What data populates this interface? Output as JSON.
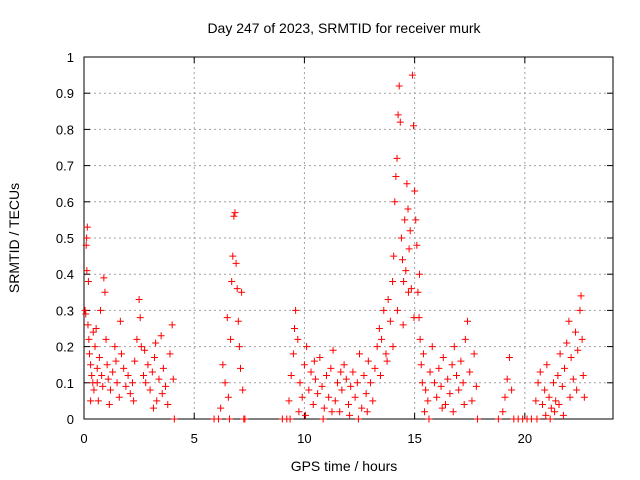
{
  "chart_data": {
    "type": "scatter",
    "title": "Day 247 of 2023, SRMTID for receiver murk",
    "xlabel": "GPS time / hours",
    "ylabel": "SRMTID / TECUs",
    "xlim": [
      0,
      24
    ],
    "ylim": [
      0,
      1
    ],
    "xticks": [
      0,
      5,
      10,
      15,
      20
    ],
    "xtick_labels": [
      "0",
      "5",
      "10",
      "15",
      "20"
    ],
    "yticks": [
      0,
      0.1,
      0.2,
      0.3,
      0.4,
      0.5,
      0.6,
      0.7,
      0.8,
      0.9,
      1
    ],
    "ytick_labels": [
      "0",
      "0.1",
      "0.2",
      "0.3",
      "0.4",
      "0.5",
      "0.6",
      "0.7",
      "0.8",
      "0.9",
      "1"
    ],
    "grid": true,
    "marker": "+",
    "color": "#ff0000",
    "series": [
      {
        "name": "SRMTID",
        "points": [
          [
            0.05,
            0.3
          ],
          [
            0.08,
            0.29
          ],
          [
            0.1,
            0.48
          ],
          [
            0.12,
            0.5
          ],
          [
            0.15,
            0.53
          ],
          [
            0.13,
            0.41
          ],
          [
            0.2,
            0.38
          ],
          [
            0.18,
            0.26
          ],
          [
            0.22,
            0.22
          ],
          [
            0.25,
            0.18
          ],
          [
            0.3,
            0.15
          ],
          [
            0.35,
            0.12
          ],
          [
            0.4,
            0.1
          ],
          [
            0.45,
            0.08
          ],
          [
            0.5,
            0.2
          ],
          [
            0.55,
            0.25
          ],
          [
            0.6,
            0.14
          ],
          [
            0.65,
            0.05
          ],
          [
            0.7,
            0.17
          ],
          [
            0.75,
            0.3
          ],
          [
            0.8,
            0.12
          ],
          [
            0.85,
            0.09
          ],
          [
            0.9,
            0.39
          ],
          [
            0.95,
            0.35
          ],
          [
            1.0,
            0.22
          ],
          [
            1.05,
            0.15
          ],
          [
            1.1,
            0.11
          ],
          [
            1.2,
            0.08
          ],
          [
            1.3,
            0.13
          ],
          [
            1.4,
            0.2
          ],
          [
            1.5,
            0.1
          ],
          [
            1.6,
            0.06
          ],
          [
            1.7,
            0.18
          ],
          [
            1.8,
            0.14
          ],
          [
            1.9,
            0.09
          ],
          [
            2.0,
            0.12
          ],
          [
            2.1,
            0.07
          ],
          [
            2.2,
            0.1
          ],
          [
            2.3,
            0.16
          ],
          [
            2.4,
            0.22
          ],
          [
            2.5,
            0.33
          ],
          [
            2.55,
            0.28
          ],
          [
            2.6,
            0.2
          ],
          [
            2.7,
            0.12
          ],
          [
            2.8,
            0.1
          ],
          [
            2.9,
            0.15
          ],
          [
            3.0,
            0.08
          ],
          [
            3.1,
            0.13
          ],
          [
            3.2,
            0.17
          ],
          [
            3.3,
            0.05
          ],
          [
            3.4,
            0.11
          ],
          [
            3.5,
            0.23
          ],
          [
            3.6,
            0.14
          ],
          [
            3.7,
            0.09
          ],
          [
            3.8,
            0.04
          ],
          [
            3.9,
            0.18
          ],
          [
            4.0,
            0.26
          ],
          [
            4.05,
            0.11
          ],
          [
            4.1,
            0.0
          ],
          [
            0.3,
            0.05
          ],
          [
            0.6,
            0.1
          ],
          [
            1.15,
            0.04
          ],
          [
            1.45,
            0.16
          ],
          [
            2.25,
            0.05
          ],
          [
            2.75,
            0.19
          ],
          [
            3.15,
            0.03
          ],
          [
            3.55,
            0.07
          ],
          [
            0.42,
            0.24
          ],
          [
            1.65,
            0.27
          ],
          [
            3.25,
            0.21
          ],
          [
            5.9,
            0.0
          ],
          [
            6.1,
            0.0
          ],
          [
            6.2,
            0.03
          ],
          [
            6.3,
            0.15
          ],
          [
            6.4,
            0.1
          ],
          [
            6.5,
            0.28
          ],
          [
            6.6,
            0.0
          ],
          [
            6.7,
            0.38
          ],
          [
            6.75,
            0.45
          ],
          [
            6.8,
            0.56
          ],
          [
            6.85,
            0.57
          ],
          [
            6.9,
            0.43
          ],
          [
            6.95,
            0.36
          ],
          [
            7.0,
            0.27
          ],
          [
            7.05,
            0.2
          ],
          [
            7.1,
            0.14
          ],
          [
            7.15,
            0.35
          ],
          [
            7.2,
            0.08
          ],
          [
            7.25,
            0.0
          ],
          [
            7.3,
            0.0
          ],
          [
            6.55,
            0.06
          ],
          [
            6.65,
            0.22
          ],
          [
            9.0,
            0.0
          ],
          [
            9.2,
            0.0
          ],
          [
            9.3,
            0.05
          ],
          [
            9.4,
            0.12
          ],
          [
            9.5,
            0.18
          ],
          [
            9.55,
            0.25
          ],
          [
            9.6,
            0.3
          ],
          [
            9.7,
            0.22
          ],
          [
            9.8,
            0.1
          ],
          [
            9.9,
            0.06
          ],
          [
            10.0,
            0.15
          ],
          [
            10.1,
            0.2
          ],
          [
            10.2,
            0.08
          ],
          [
            10.3,
            0.13
          ],
          [
            10.4,
            0.04
          ],
          [
            10.5,
            0.11
          ],
          [
            10.6,
            0.07
          ],
          [
            10.7,
            0.17
          ],
          [
            10.8,
            0.09
          ],
          [
            10.9,
            0.03
          ],
          [
            11.0,
            0.12
          ],
          [
            11.1,
            0.06
          ],
          [
            11.2,
            0.14
          ],
          [
            11.3,
            0.19
          ],
          [
            11.4,
            0.05
          ],
          [
            11.5,
            0.1
          ],
          [
            11.6,
            0.02
          ],
          [
            11.7,
            0.08
          ],
          [
            11.8,
            0.15
          ],
          [
            11.9,
            0.11
          ],
          [
            12.0,
            0.04
          ],
          [
            12.1,
            0.09
          ],
          [
            12.2,
            0.13
          ],
          [
            12.3,
            0.06
          ],
          [
            12.4,
            0.1
          ],
          [
            12.5,
            0.18
          ],
          [
            12.6,
            0.03
          ],
          [
            12.7,
            0.12
          ],
          [
            12.8,
            0.07
          ],
          [
            12.9,
            0.16
          ],
          [
            13.0,
            0.1
          ],
          [
            13.1,
            0.05
          ],
          [
            13.2,
            0.14
          ],
          [
            9.35,
            0.0
          ],
          [
            9.75,
            0.02
          ],
          [
            10.05,
            0.01
          ],
          [
            10.45,
            0.16
          ],
          [
            10.85,
            0.0
          ],
          [
            11.25,
            0.02
          ],
          [
            11.65,
            0.13
          ],
          [
            12.05,
            0.01
          ],
          [
            12.45,
            0.0
          ],
          [
            12.85,
            0.02
          ],
          [
            13.3,
            0.2
          ],
          [
            13.4,
            0.25
          ],
          [
            13.5,
            0.22
          ],
          [
            13.6,
            0.3
          ],
          [
            13.7,
            0.18
          ],
          [
            13.8,
            0.33
          ],
          [
            13.9,
            0.27
          ],
          [
            14.0,
            0.38
          ],
          [
            14.05,
            0.45
          ],
          [
            14.1,
            0.6
          ],
          [
            14.15,
            0.67
          ],
          [
            14.2,
            0.72
          ],
          [
            14.25,
            0.84
          ],
          [
            14.3,
            0.92
          ],
          [
            14.35,
            0.82
          ],
          [
            14.4,
            0.5
          ],
          [
            14.45,
            0.44
          ],
          [
            14.5,
            0.38
          ],
          [
            14.55,
            0.55
          ],
          [
            14.6,
            0.41
          ],
          [
            14.65,
            0.65
          ],
          [
            14.7,
            0.58
          ],
          [
            14.75,
            0.47
          ],
          [
            14.8,
            0.52
          ],
          [
            14.85,
            0.36
          ],
          [
            14.9,
            0.95
          ],
          [
            14.95,
            0.81
          ],
          [
            15.0,
            0.63
          ],
          [
            15.05,
            0.55
          ],
          [
            15.1,
            0.48
          ],
          [
            15.15,
            0.35
          ],
          [
            15.2,
            0.28
          ],
          [
            15.25,
            0.22
          ],
          [
            15.3,
            0.15
          ],
          [
            15.35,
            0.1
          ],
          [
            15.4,
            0.18
          ],
          [
            15.5,
            0.08
          ],
          [
            15.6,
            0.05
          ],
          [
            15.7,
            0.13
          ],
          [
            15.8,
            0.2
          ],
          [
            15.9,
            0.1
          ],
          [
            16.0,
            0.06
          ],
          [
            16.1,
            0.14
          ],
          [
            16.2,
            0.09
          ],
          [
            16.3,
            0.17
          ],
          [
            16.4,
            0.04
          ],
          [
            16.5,
            0.11
          ],
          [
            16.6,
            0.07
          ],
          [
            16.7,
            0.15
          ],
          [
            16.8,
            0.2
          ],
          [
            16.9,
            0.12
          ],
          [
            17.0,
            0.08
          ],
          [
            17.1,
            0.16
          ],
          [
            17.2,
            0.1
          ],
          [
            17.3,
            0.22
          ],
          [
            17.4,
            0.27
          ],
          [
            17.5,
            0.13
          ],
          [
            17.6,
            0.05
          ],
          [
            17.7,
            0.18
          ],
          [
            17.8,
            0.09
          ],
          [
            17.85,
            0.0
          ],
          [
            13.45,
            0.12
          ],
          [
            13.75,
            0.16
          ],
          [
            14.02,
            0.2
          ],
          [
            14.22,
            0.3
          ],
          [
            14.48,
            0.26
          ],
          [
            14.72,
            0.35
          ],
          [
            14.97,
            0.28
          ],
          [
            15.22,
            0.4
          ],
          [
            15.45,
            0.02
          ],
          [
            15.65,
            0.0
          ],
          [
            16.25,
            0.03
          ],
          [
            16.75,
            0.02
          ],
          [
            17.25,
            0.04
          ],
          [
            18.8,
            0.0
          ],
          [
            19.0,
            0.02
          ],
          [
            19.1,
            0.06
          ],
          [
            19.2,
            0.11
          ],
          [
            19.3,
            0.17
          ],
          [
            19.4,
            0.08
          ],
          [
            19.5,
            0.0
          ],
          [
            19.7,
            0.0
          ],
          [
            19.9,
            0.0
          ],
          [
            20.1,
            0.0
          ],
          [
            20.3,
            0.0
          ],
          [
            20.5,
            0.05
          ],
          [
            20.6,
            0.1
          ],
          [
            20.7,
            0.13
          ],
          [
            20.8,
            0.04
          ],
          [
            20.9,
            0.08
          ],
          [
            21.0,
            0.15
          ],
          [
            21.1,
            0.06
          ],
          [
            21.2,
            0.03
          ],
          [
            21.3,
            0.1
          ],
          [
            21.4,
            0.05
          ],
          [
            21.5,
            0.12
          ],
          [
            21.6,
            0.18
          ],
          [
            21.7,
            0.09
          ],
          [
            21.8,
            0.14
          ],
          [
            21.9,
            0.21
          ],
          [
            22.0,
            0.27
          ],
          [
            22.1,
            0.17
          ],
          [
            22.2,
            0.11
          ],
          [
            22.3,
            0.24
          ],
          [
            22.4,
            0.19
          ],
          [
            22.5,
            0.3
          ],
          [
            22.55,
            0.34
          ],
          [
            22.6,
            0.22
          ],
          [
            22.65,
            0.12
          ],
          [
            22.7,
            0.06
          ],
          [
            20.55,
            0.0
          ],
          [
            20.95,
            0.01
          ],
          [
            21.15,
            0.0
          ],
          [
            21.35,
            0.02
          ],
          [
            21.55,
            0.04
          ],
          [
            21.75,
            0.01
          ],
          [
            22.05,
            0.06
          ],
          [
            22.35,
            0.08
          ]
        ]
      }
    ]
  }
}
